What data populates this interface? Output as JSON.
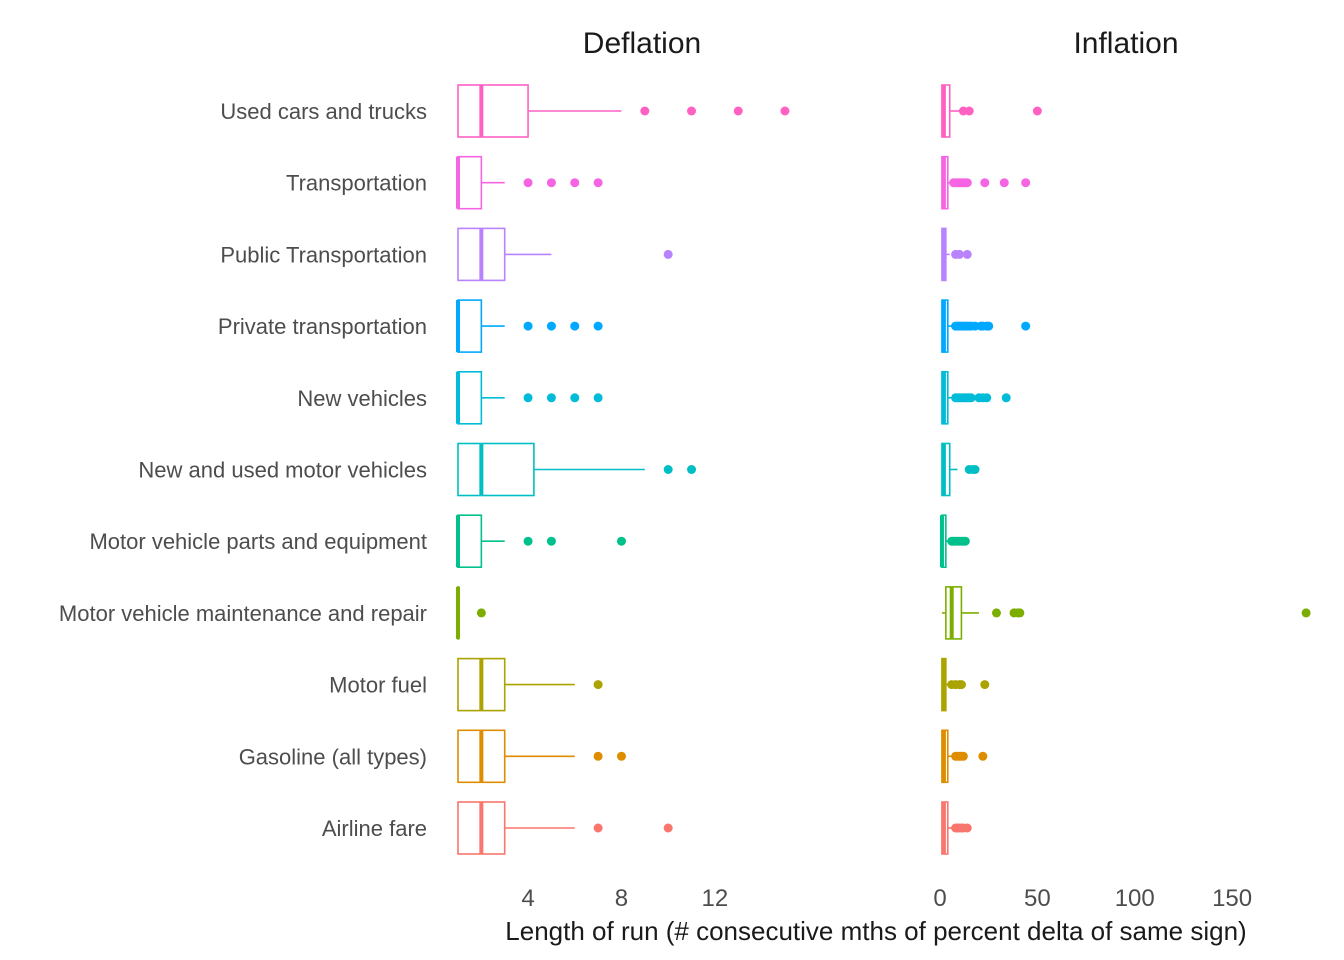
{
  "chart_data": {
    "type": "boxplot",
    "xlabel": "Length of run (# consecutive mths of percent delta of same sign)",
    "categories": [
      "Used cars and trucks",
      "Transportation",
      "Public Transportation",
      "Private transportation",
      "New vehicles",
      "New and used motor vehicles",
      "Motor vehicle parts and equipment",
      "Motor vehicle maintenance and repair",
      "Motor fuel",
      "Gasoline (all types)",
      "Airline fare"
    ],
    "colors": [
      "#FF61C3",
      "#F564E3",
      "#B983FF",
      "#00A9FF",
      "#00BCD8",
      "#00BFC4",
      "#00C08B",
      "#7CAE00",
      "#ABA300",
      "#DE8C00",
      "#F8766D"
    ],
    "panels": [
      {
        "title": "Deflation",
        "xlim": [
          1,
          18
        ],
        "ticks": [
          4,
          8,
          12
        ],
        "boxes": [
          {
            "min": 1,
            "q1": 1,
            "median": 2,
            "q3": 4,
            "max": 8,
            "outliers": [
              9,
              11,
              13,
              15
            ]
          },
          {
            "min": 1,
            "q1": 1,
            "median": 1,
            "q3": 2,
            "max": 3,
            "outliers": [
              4,
              5,
              6,
              7
            ]
          },
          {
            "min": 1,
            "q1": 1,
            "median": 2,
            "q3": 3,
            "max": 5,
            "outliers": [
              10
            ]
          },
          {
            "min": 1,
            "q1": 1,
            "median": 1,
            "q3": 2,
            "max": 3,
            "outliers": [
              4,
              5,
              6,
              7
            ]
          },
          {
            "min": 1,
            "q1": 1,
            "median": 1,
            "q3": 2,
            "max": 3,
            "outliers": [
              4,
              5,
              6,
              7
            ]
          },
          {
            "min": 1,
            "q1": 1,
            "median": 2,
            "q3": 4.25,
            "max": 9,
            "outliers": [
              10,
              11
            ]
          },
          {
            "min": 1,
            "q1": 1,
            "median": 1,
            "q3": 2,
            "max": 3,
            "outliers": [
              4,
              5,
              8
            ]
          },
          {
            "min": 1,
            "q1": 1,
            "median": 1,
            "q3": 1,
            "max": 1,
            "outliers": [
              2
            ]
          },
          {
            "min": 1,
            "q1": 1,
            "median": 2,
            "q3": 3,
            "max": 6,
            "outliers": [
              7
            ]
          },
          {
            "min": 1,
            "q1": 1,
            "median": 2,
            "q3": 3,
            "max": 6,
            "outliers": [
              7,
              8
            ]
          },
          {
            "min": 1,
            "q1": 1,
            "median": 2,
            "q3": 3,
            "max": 6,
            "outliers": [
              7,
              10
            ]
          }
        ]
      },
      {
        "title": "Inflation",
        "xlim": [
          0,
          190
        ],
        "ticks": [
          0,
          50,
          100,
          150
        ],
        "boxes": [
          {
            "min": 1,
            "q1": 1,
            "median": 2,
            "q3": 5,
            "max": 10,
            "outliers": [
              12,
              15,
              50
            ]
          },
          {
            "min": 1,
            "q1": 1,
            "median": 2,
            "q3": 4,
            "max": 6,
            "outliers": [
              7,
              8,
              9,
              10,
              11,
              12,
              13,
              14,
              23,
              33,
              44
            ]
          },
          {
            "min": 1,
            "q1": 1,
            "median": 2,
            "q3": 3,
            "max": 5,
            "outliers": [
              8,
              10,
              14
            ]
          },
          {
            "min": 1,
            "q1": 1,
            "median": 2,
            "q3": 4,
            "max": 7,
            "outliers": [
              8,
              9,
              10,
              11,
              12,
              13,
              14,
              15,
              16,
              18,
              21,
              22,
              24,
              25,
              44
            ]
          },
          {
            "min": 1,
            "q1": 1,
            "median": 2,
            "q3": 4,
            "max": 7,
            "outliers": [
              8,
              9,
              10,
              11,
              12,
              13,
              14,
              15,
              16,
              20,
              22,
              24,
              34
            ]
          },
          {
            "min": 1,
            "q1": 1,
            "median": 2,
            "q3": 5,
            "max": 9,
            "outliers": [
              15,
              17,
              18
            ]
          },
          {
            "min": 1,
            "q1": 1,
            "median": 1,
            "q3": 3,
            "max": 5,
            "outliers": [
              6,
              7,
              8,
              9,
              10,
              11,
              12,
              13
            ]
          },
          {
            "min": 1,
            "q1": 3,
            "median": 6,
            "q3": 11,
            "max": 20,
            "outliers": [
              29,
              38,
              40,
              41,
              188
            ]
          },
          {
            "min": 1,
            "q1": 1,
            "median": 2,
            "q3": 3,
            "max": 5,
            "outliers": [
              6,
              8,
              10,
              11,
              23
            ]
          },
          {
            "min": 1,
            "q1": 1,
            "median": 2,
            "q3": 4,
            "max": 6,
            "outliers": [
              8,
              9,
              10,
              11,
              12,
              22
            ]
          },
          {
            "min": 1,
            "q1": 1,
            "median": 2,
            "q3": 4,
            "max": 7,
            "outliers": [
              8,
              9,
              10,
              11,
              12,
              14
            ]
          }
        ]
      }
    ],
    "grid": false,
    "legend": "none"
  }
}
